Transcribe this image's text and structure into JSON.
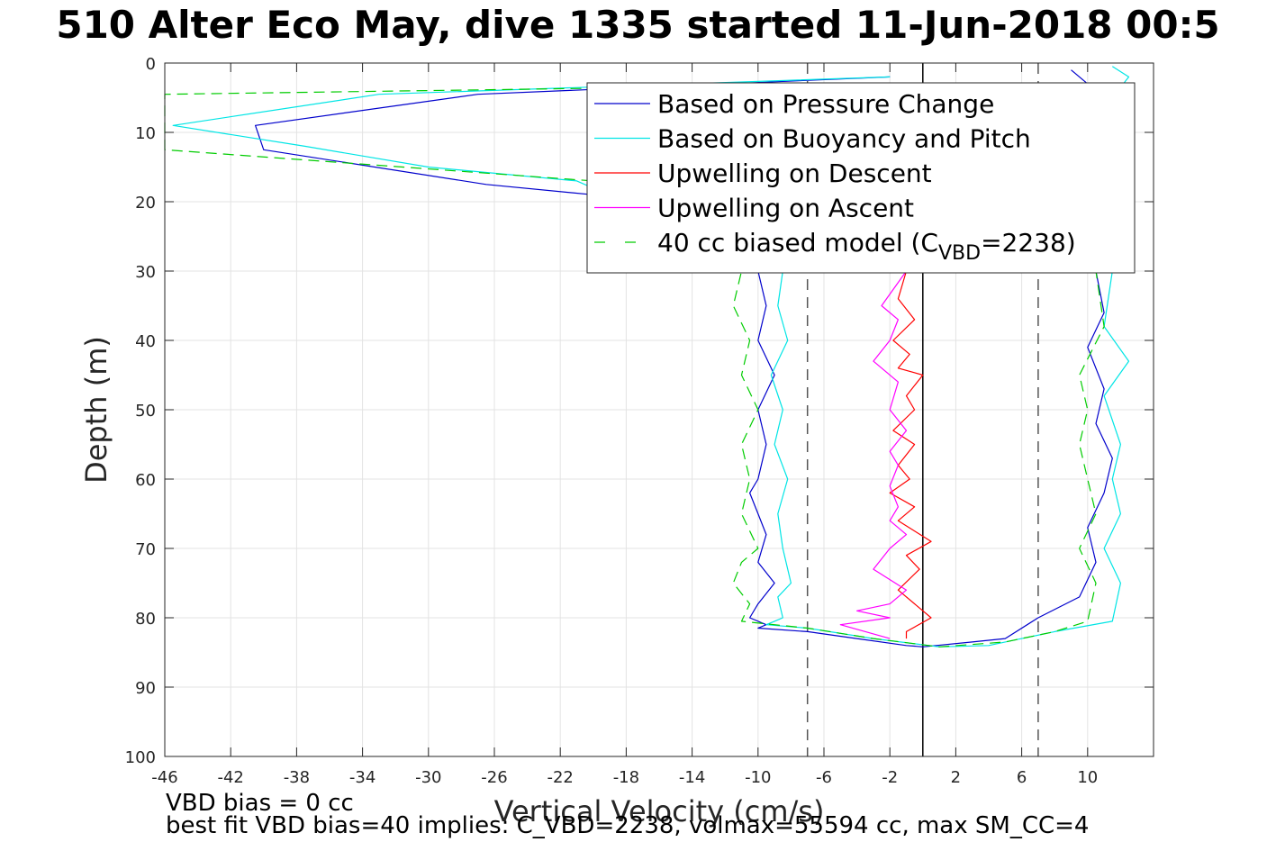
{
  "chart_data": {
    "type": "line",
    "title": "510 Alter Eco May, dive 1335 started 11-Jun-2018 00:5",
    "xlabel": "Vertical Velocity (cm/s)",
    "ylabel": "Depth (m)",
    "xlim": [
      -46,
      14
    ],
    "ylim": [
      0,
      100
    ],
    "y_reversed": true,
    "grid": true,
    "xticks": [
      -46,
      -42,
      -38,
      -34,
      -30,
      -26,
      -22,
      -18,
      -14,
      -10,
      -6,
      -2,
      2,
      6,
      10
    ],
    "yticks": [
      0,
      10,
      20,
      30,
      40,
      50,
      60,
      70,
      80,
      90,
      100
    ],
    "legend_position": "top-right",
    "legend": [
      {
        "label": "Based on Pressure Change",
        "color": "#0000cc",
        "dash": false
      },
      {
        "label": "Based on Buoyancy and Pitch",
        "color": "#00e5e5",
        "dash": false
      },
      {
        "label": "Upwelling on Descent",
        "color": "#ff0000",
        "dash": false
      },
      {
        "label": "Upwelling on Ascent",
        "color": "#ff00ff",
        "dash": false
      },
      {
        "label": "40 cc biased model (C",
        "sub": "VBD",
        "suffix": "=2238)",
        "color": "#00cc00",
        "dash": true
      }
    ],
    "reference_lines": [
      {
        "x": 0,
        "style": "solid",
        "color": "#000000"
      },
      {
        "x": -7,
        "style": "dashed",
        "color": "#555555"
      },
      {
        "x": 7,
        "style": "dashed",
        "color": "#555555"
      }
    ],
    "series": [
      {
        "name": "Based on Pressure Change",
        "color": "#0000cc",
        "dash": false,
        "x": [
          -2,
          -27,
          -40.5,
          -40,
          -26.5,
          -20,
          -10,
          -9.5,
          -10,
          -9,
          -10,
          -9.5,
          -10,
          -10.5,
          -10,
          -9.5,
          -10,
          -9,
          -10,
          -10.5,
          -9.5,
          -10,
          -7,
          -4,
          -1,
          0,
          3,
          5,
          7,
          9.5,
          10.5,
          10,
          11,
          11.5,
          10.5,
          11,
          10,
          11,
          10.5,
          10,
          9.5,
          10.5,
          9
        ],
        "y": [
          2,
          4.5,
          9,
          12.5,
          17.5,
          19,
          30,
          35,
          40,
          45,
          50,
          55,
          60,
          62,
          65,
          68,
          72,
          75,
          78,
          80,
          81,
          81.5,
          82,
          83,
          84,
          84.2,
          83.5,
          83,
          80,
          77,
          72,
          67,
          62,
          57,
          52,
          47,
          41,
          36,
          30,
          20,
          10,
          4,
          1
        ]
      },
      {
        "name": "Based on Buoyancy and Pitch",
        "color": "#00e5e5",
        "dash": false,
        "x": [
          -2,
          -33,
          -45.5,
          -37.5,
          -30,
          -21,
          -8.5,
          -8.8,
          -8.2,
          -9.2,
          -8.5,
          -9,
          -8.2,
          -8.8,
          -8.5,
          -8,
          -8.8,
          -8.5,
          -9,
          -9.5,
          -7,
          -3,
          1,
          4,
          6,
          8,
          11.5,
          12,
          11,
          12,
          11.5,
          12,
          11,
          12.5,
          11,
          11.5,
          11,
          12.5,
          11.5,
          12.5,
          11.5
        ],
        "y": [
          2,
          4.5,
          9,
          12,
          15,
          17,
          30,
          35,
          40,
          45,
          50,
          55,
          60,
          65,
          70,
          75,
          77,
          80,
          80.5,
          81,
          81.5,
          83,
          84.2,
          84,
          83,
          82,
          80.5,
          75,
          70,
          65,
          60,
          55,
          48,
          43,
          38,
          30,
          20,
          10,
          5,
          2,
          0.5
        ]
      },
      {
        "name": "Upwelling on Descent",
        "color": "#ff0000",
        "dash": false,
        "x": [
          -1,
          -1.5,
          -0.5,
          -1.8,
          -0.8,
          -1.5,
          0,
          -1,
          -0.5,
          -1.8,
          -0.5,
          -1.5,
          -0.8,
          -2,
          -0.5,
          -1.5,
          0.5,
          -1,
          -0.2,
          -1.5,
          0.5,
          -1,
          -1
        ],
        "y": [
          30,
          34,
          37,
          40,
          42,
          44,
          45,
          48,
          50,
          53,
          55,
          58,
          60,
          62,
          64,
          66,
          69,
          71,
          73,
          76,
          80,
          82,
          83
        ]
      },
      {
        "name": "Upwelling on Ascent",
        "color": "#ff00ff",
        "dash": false,
        "x": [
          -1,
          -2.5,
          -1.5,
          -2,
          -3,
          -1.5,
          -2,
          -1,
          -2,
          -1.5,
          -2,
          -1.5,
          -2,
          -1,
          -2,
          -3,
          -1,
          -2,
          -4,
          -2,
          -5,
          -2
        ],
        "y": [
          30,
          35,
          37,
          40,
          43,
          46,
          50,
          53,
          56,
          58,
          61,
          64,
          66,
          68,
          70,
          73,
          76,
          78,
          79,
          80,
          81,
          83
        ]
      },
      {
        "name": "40 cc biased model (C_VBD=2238)",
        "color": "#00cc00",
        "dash": true,
        "x": [
          -1,
          -46,
          -46,
          -20,
          -11,
          -11.5,
          -10.5,
          -11,
          -10,
          -11,
          -10.5,
          -11,
          -10,
          -11,
          -11.5,
          -10.5,
          -11,
          -7,
          -3,
          1,
          5,
          8,
          10,
          10.5,
          9.5,
          10.5,
          10,
          9.5,
          10,
          9.5,
          11,
          10.5,
          10
        ],
        "y": [
          3,
          4.5,
          12.5,
          17,
          30,
          35,
          40,
          45,
          50,
          55,
          60,
          65,
          70,
          72,
          75,
          78,
          80.5,
          81.5,
          83,
          84.2,
          83.5,
          82,
          80.5,
          75,
          70,
          65,
          60,
          55,
          50,
          45,
          38,
          30,
          20
        ]
      }
    ]
  },
  "annotations": {
    "bias_line": "VBD bias = 0 cc",
    "fit_line": "best fit VBD bias=40 implies: C_VBD=2238, volmax=55594 cc, max SM_CC=4"
  }
}
